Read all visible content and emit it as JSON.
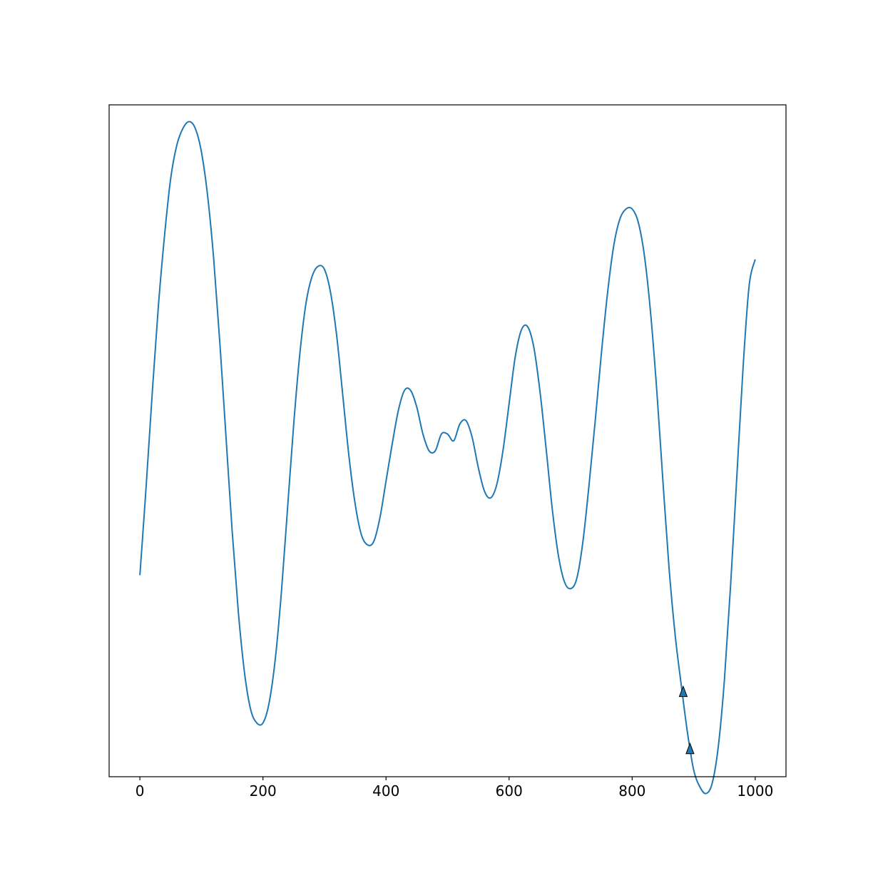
{
  "chart_data": {
    "type": "line",
    "title": "",
    "xlabel": "",
    "ylabel": "",
    "xlim": [
      -50,
      1050
    ],
    "ylim": [
      -1.0,
      1.0
    ],
    "xticks": [
      0,
      200,
      400,
      600,
      800,
      1000
    ],
    "xtick_labels": [
      "0",
      "200",
      "400",
      "600",
      "800",
      "1000"
    ],
    "grid": false,
    "legend": "none",
    "line_color": "#1f77b4",
    "series": [
      {
        "points": [
          [
            0,
            -0.4
          ],
          [
            10,
            -0.14
          ],
          [
            20,
            0.14
          ],
          [
            30,
            0.4
          ],
          [
            40,
            0.61
          ],
          [
            50,
            0.78
          ],
          [
            60,
            0.88
          ],
          [
            70,
            0.93
          ],
          [
            80,
            0.95
          ],
          [
            90,
            0.93
          ],
          [
            100,
            0.86
          ],
          [
            110,
            0.73
          ],
          [
            120,
            0.54
          ],
          [
            130,
            0.29
          ],
          [
            140,
            0.01
          ],
          [
            150,
            -0.27
          ],
          [
            160,
            -0.51
          ],
          [
            170,
            -0.69
          ],
          [
            180,
            -0.8
          ],
          [
            190,
            -0.84
          ],
          [
            200,
            -0.84
          ],
          [
            210,
            -0.78
          ],
          [
            220,
            -0.65
          ],
          [
            230,
            -0.45
          ],
          [
            240,
            -0.2
          ],
          [
            250,
            0.05
          ],
          [
            260,
            0.26
          ],
          [
            270,
            0.41
          ],
          [
            280,
            0.49
          ],
          [
            290,
            0.52
          ],
          [
            300,
            0.51
          ],
          [
            310,
            0.44
          ],
          [
            320,
            0.31
          ],
          [
            330,
            0.13
          ],
          [
            340,
            -0.05
          ],
          [
            350,
            -0.19
          ],
          [
            360,
            -0.28
          ],
          [
            370,
            -0.31
          ],
          [
            380,
            -0.3
          ],
          [
            390,
            -0.23
          ],
          [
            400,
            -0.12
          ],
          [
            410,
            -0.01
          ],
          [
            420,
            0.09
          ],
          [
            430,
            0.15
          ],
          [
            440,
            0.15
          ],
          [
            450,
            0.1
          ],
          [
            460,
            0.02
          ],
          [
            470,
            -0.03
          ],
          [
            480,
            -0.03
          ],
          [
            490,
            0.02
          ],
          [
            500,
            0.02
          ],
          [
            510,
            0.0
          ],
          [
            520,
            0.05
          ],
          [
            530,
            0.06
          ],
          [
            540,
            0.01
          ],
          [
            550,
            -0.08
          ],
          [
            560,
            -0.15
          ],
          [
            570,
            -0.17
          ],
          [
            580,
            -0.13
          ],
          [
            590,
            -0.03
          ],
          [
            600,
            0.11
          ],
          [
            610,
            0.25
          ],
          [
            620,
            0.33
          ],
          [
            630,
            0.34
          ],
          [
            640,
            0.28
          ],
          [
            650,
            0.15
          ],
          [
            660,
            -0.02
          ],
          [
            670,
            -0.2
          ],
          [
            680,
            -0.34
          ],
          [
            690,
            -0.42
          ],
          [
            700,
            -0.44
          ],
          [
            710,
            -0.41
          ],
          [
            720,
            -0.3
          ],
          [
            730,
            -0.13
          ],
          [
            740,
            0.06
          ],
          [
            750,
            0.26
          ],
          [
            760,
            0.44
          ],
          [
            770,
            0.58
          ],
          [
            780,
            0.66
          ],
          [
            790,
            0.69
          ],
          [
            800,
            0.69
          ],
          [
            810,
            0.65
          ],
          [
            820,
            0.55
          ],
          [
            830,
            0.38
          ],
          [
            840,
            0.15
          ],
          [
            850,
            -0.12
          ],
          [
            860,
            -0.38
          ],
          [
            870,
            -0.58
          ],
          [
            880,
            -0.73
          ],
          [
            890,
            -0.87
          ],
          [
            900,
            -0.98
          ],
          [
            910,
            -1.03
          ],
          [
            920,
            -1.05
          ],
          [
            930,
            -1.02
          ],
          [
            940,
            -0.91
          ],
          [
            950,
            -0.71
          ],
          [
            960,
            -0.43
          ],
          [
            970,
            -0.11
          ],
          [
            980,
            0.21
          ],
          [
            990,
            0.46
          ],
          [
            1000,
            0.54
          ]
        ]
      }
    ],
    "markers": [
      {
        "shape": "triangle-up",
        "x": 883,
        "y": -0.75
      },
      {
        "shape": "triangle-up",
        "x": 894,
        "y": -0.92
      }
    ]
  }
}
